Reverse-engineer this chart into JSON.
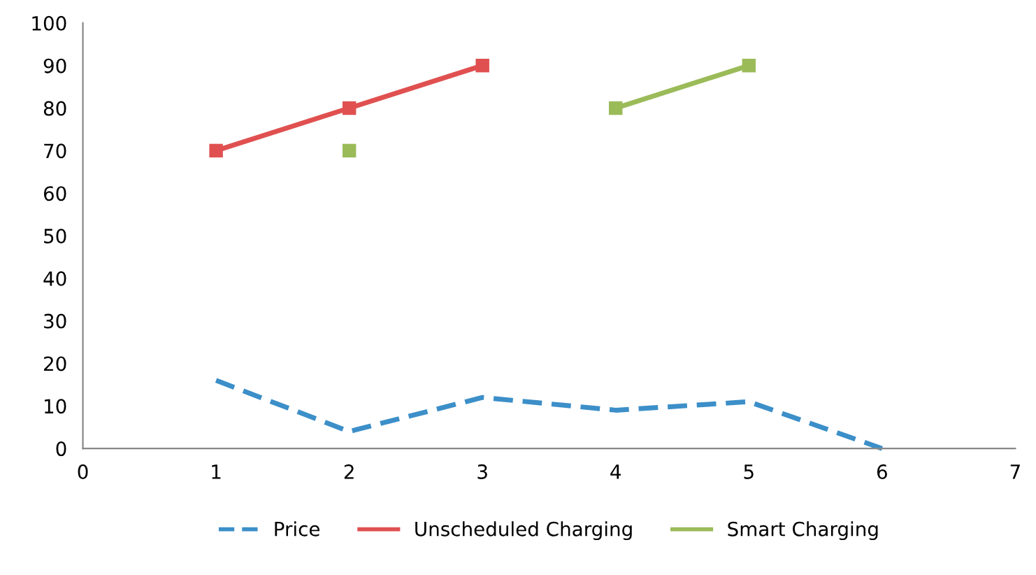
{
  "chart_data": {
    "type": "line",
    "x": [
      1,
      2,
      3,
      4,
      5,
      6
    ],
    "series": [
      {
        "name": "Price",
        "color": "#3c8fc8",
        "values": [
          16,
          4,
          12,
          9,
          11,
          0
        ],
        "line_style": "dashed",
        "marker": "none"
      },
      {
        "name": "Unscheduled Charging",
        "color": "#e05050",
        "values": [
          70,
          80,
          90,
          null,
          null,
          null
        ],
        "line_style": "solid",
        "marker": "square"
      },
      {
        "name": "Smart Charging",
        "color": "#9bbb59",
        "values": [
          null,
          70,
          null,
          80,
          90,
          null
        ],
        "line_style": "solid",
        "marker": "square"
      }
    ],
    "xlim": [
      0,
      7
    ],
    "xticks": [
      0,
      1,
      2,
      3,
      4,
      5,
      6,
      7
    ],
    "ylim": [
      0,
      100
    ],
    "yticks": [
      0,
      10,
      20,
      30,
      40,
      50,
      60,
      70,
      80,
      90,
      100
    ],
    "grid": false,
    "legend": "bottom"
  }
}
